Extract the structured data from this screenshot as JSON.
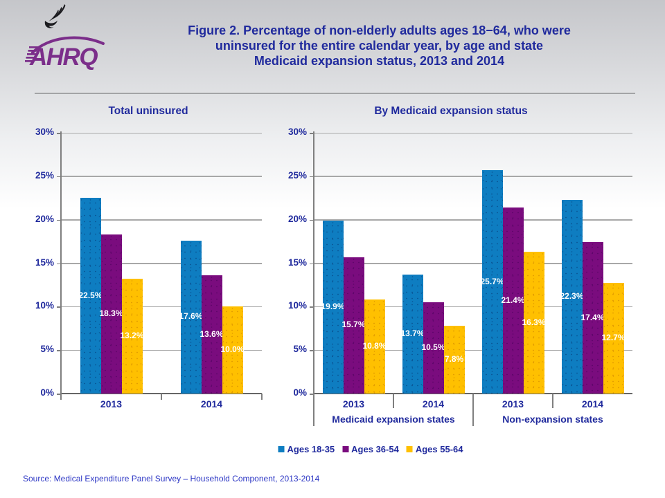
{
  "header": {
    "title_lines": [
      "Figure 2. Percentage of non-elderly adults ages 18−64, who were",
      "uninsured for the entire calendar year, by age and state",
      "Medicaid expansion status, 2013 and 2014"
    ]
  },
  "logo": {
    "org": "AHRQ"
  },
  "colors": {
    "blue": "#0e7dc1",
    "purple": "#7a0c7e",
    "gold": "#ffc000",
    "navy": "#202a9d",
    "source_text": "#2b35c4",
    "gridline": "#a8a8a8",
    "axis": "#7f7f7f"
  },
  "legend": [
    {
      "label": "Ages 18-35",
      "color": "blue"
    },
    {
      "label": "Ages 36-54",
      "color": "purple"
    },
    {
      "label": "Ages 55-64",
      "color": "gold"
    }
  ],
  "chart_data": [
    {
      "type": "bar",
      "title": "Total uninsured",
      "ylim": [
        0,
        30
      ],
      "ytick_step": 5,
      "ytick_suffix": "%",
      "grid": true,
      "legend_position": "bottom",
      "series_names": [
        "Ages 18-35",
        "Ages 36-54",
        "Ages 55-64"
      ],
      "groups": [
        {
          "label": "2013",
          "values": [
            22.5,
            18.3,
            13.2
          ]
        },
        {
          "label": "2014",
          "values": [
            17.6,
            13.6,
            10.0
          ]
        }
      ],
      "value_suffix": "%"
    },
    {
      "type": "bar",
      "title": "By Medicaid expansion status",
      "ylim": [
        0,
        30
      ],
      "ytick_step": 5,
      "ytick_suffix": "%",
      "grid": true,
      "legend_position": "bottom",
      "series_names": [
        "Ages 18-35",
        "Ages 36-54",
        "Ages 55-64"
      ],
      "groups": [
        {
          "label": "2013",
          "values": [
            19.9,
            15.7,
            10.8
          ]
        },
        {
          "label": "2014",
          "values": [
            13.7,
            10.5,
            7.8
          ]
        },
        {
          "label": "2013",
          "values": [
            25.7,
            21.4,
            16.3
          ]
        },
        {
          "label": "2014",
          "values": [
            22.3,
            17.4,
            12.7
          ]
        }
      ],
      "supergroups": [
        {
          "label": "Medicaid expansion states",
          "from": 0,
          "to": 2
        },
        {
          "label": "Non-expansion states",
          "from": 2,
          "to": 4
        }
      ],
      "value_suffix": "%"
    }
  ],
  "source": "Source: Medical Expenditure Panel Survey – Household Component, 2013-2014"
}
